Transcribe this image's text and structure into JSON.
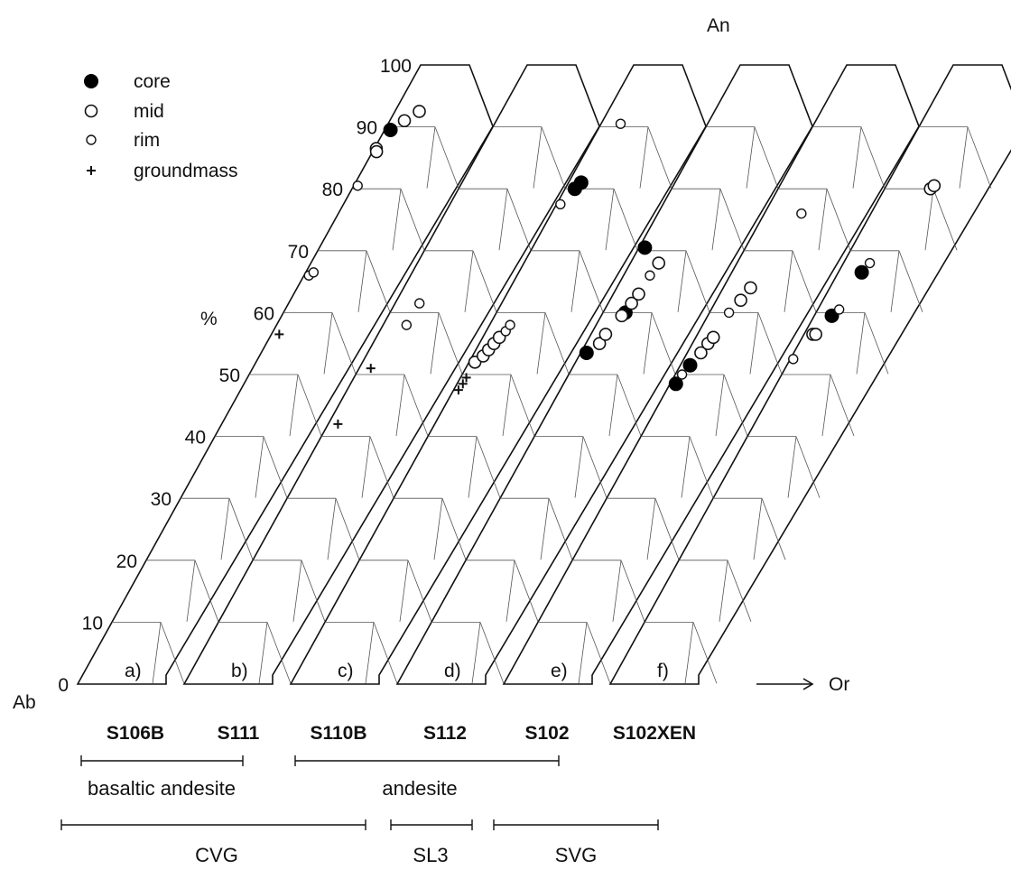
{
  "chart_data": {
    "type": "scatter",
    "title": "",
    "ylabel": "%",
    "apex_top": "An",
    "corner_left": "Ab",
    "corner_right": "Or",
    "axis_ticks": [
      "0",
      "10",
      "20",
      "30",
      "40",
      "50",
      "60",
      "70",
      "80",
      "90",
      "100"
    ],
    "ylim": [
      0,
      100
    ],
    "grid": true,
    "legend_position": "top-left",
    "legend": [
      {
        "key": "core",
        "label": "core",
        "symbol": "filled-circle"
      },
      {
        "key": "mid",
        "label": "mid",
        "symbol": "open-circle"
      },
      {
        "key": "rim",
        "label": "rim",
        "symbol": "small-open-circle"
      },
      {
        "key": "groundmass",
        "label": "groundmass",
        "symbol": "plus"
      }
    ],
    "panels": [
      {
        "label": "a)",
        "sample": "S106B",
        "points": [
          {
            "An": 89.5,
            "Or": 0.6,
            "type": "core"
          },
          {
            "An": 91.0,
            "Or": 1.5,
            "type": "mid"
          },
          {
            "An": 92.5,
            "Or": 2.5,
            "type": "mid"
          },
          {
            "An": 86.5,
            "Or": 0.2,
            "type": "mid"
          },
          {
            "An": 86.0,
            "Or": 0.4,
            "type": "mid"
          },
          {
            "An": 80.5,
            "Or": 0.4,
            "type": "rim"
          },
          {
            "An": 66.0,
            "Or": 0.5,
            "type": "rim"
          },
          {
            "An": 66.5,
            "Or": 0.8,
            "type": "rim"
          },
          {
            "An": 56.5,
            "Or": 0.8,
            "type": "groundmass"
          }
        ]
      },
      {
        "label": "b)",
        "sample": "S111",
        "points": [
          {
            "An": 51.0,
            "Or": 1.2,
            "type": "groundmass"
          },
          {
            "An": 42.0,
            "Or": 1.0,
            "type": "groundmass"
          },
          {
            "An": 58.0,
            "Or": 2.4,
            "type": "rim"
          },
          {
            "An": 61.5,
            "Or": 2.5,
            "type": "rim"
          }
        ]
      },
      {
        "label": "c)",
        "sample": "S110B",
        "points": [
          {
            "An": 80.0,
            "Or": 1.0,
            "type": "core"
          },
          {
            "An": 81.0,
            "Or": 1.3,
            "type": "core"
          },
          {
            "An": 77.5,
            "Or": 0.4,
            "type": "rim"
          },
          {
            "An": 90.5,
            "Or": 2.0,
            "type": "rim"
          },
          {
            "An": 52.0,
            "Or": 0.6,
            "type": "mid"
          },
          {
            "An": 53.0,
            "Or": 1.1,
            "type": "mid"
          },
          {
            "An": 54.0,
            "Or": 1.3,
            "type": "mid"
          },
          {
            "An": 55.0,
            "Or": 1.5,
            "type": "mid"
          },
          {
            "An": 56.0,
            "Or": 1.7,
            "type": "mid"
          },
          {
            "An": 57.0,
            "Or": 2.0,
            "type": "rim"
          },
          {
            "An": 58.0,
            "Or": 2.1,
            "type": "rim"
          },
          {
            "An": 48.5,
            "Or": 0.6,
            "type": "groundmass"
          },
          {
            "An": 49.5,
            "Or": 0.6,
            "type": "groundmass"
          },
          {
            "An": 47.5,
            "Or": 0.5,
            "type": "groundmass"
          }
        ]
      },
      {
        "label": "d)",
        "sample": "S112",
        "points": [
          {
            "An": 70.5,
            "Or": 0.6,
            "type": "core"
          },
          {
            "An": 53.5,
            "Or": 0.6,
            "type": "core"
          },
          {
            "An": 60.0,
            "Or": 2.3,
            "type": "core"
          },
          {
            "An": 55.0,
            "Or": 1.4,
            "type": "mid"
          },
          {
            "An": 56.5,
            "Or": 1.5,
            "type": "mid"
          },
          {
            "An": 59.5,
            "Or": 2.1,
            "type": "mid"
          },
          {
            "An": 61.5,
            "Or": 2.4,
            "type": "mid"
          },
          {
            "An": 63.0,
            "Or": 2.6,
            "type": "mid"
          },
          {
            "An": 68.0,
            "Or": 2.9,
            "type": "mid"
          },
          {
            "An": 66.0,
            "Or": 2.7,
            "type": "rim"
          }
        ]
      },
      {
        "label": "e)",
        "sample": "S102",
        "points": [
          {
            "An": 48.5,
            "Or": 0.6,
            "type": "core"
          },
          {
            "An": 51.5,
            "Or": 1.0,
            "type": "core"
          },
          {
            "An": 53.5,
            "Or": 1.4,
            "type": "mid"
          },
          {
            "An": 55.0,
            "Or": 1.6,
            "type": "mid"
          },
          {
            "An": 56.0,
            "Or": 1.8,
            "type": "mid"
          },
          {
            "An": 60.0,
            "Or": 2.0,
            "type": "rim"
          },
          {
            "An": 62.0,
            "Or": 2.5,
            "type": "mid"
          },
          {
            "An": 64.0,
            "Or": 2.8,
            "type": "mid"
          },
          {
            "An": 50.0,
            "Or": 0.7,
            "type": "rim"
          },
          {
            "An": 76.0,
            "Or": 3.8,
            "type": "rim"
          }
        ]
      },
      {
        "label": "f)",
        "sample": "S102XEN",
        "points": [
          {
            "An": 66.5,
            "Or": 2.4,
            "type": "core"
          },
          {
            "An": 59.5,
            "Or": 1.8,
            "type": "core"
          },
          {
            "An": 56.5,
            "Or": 0.9,
            "type": "mid"
          },
          {
            "An": 56.5,
            "Or": 1.2,
            "type": "mid"
          },
          {
            "An": 60.5,
            "Or": 2.2,
            "type": "rim"
          },
          {
            "An": 68.0,
            "Or": 2.7,
            "type": "rim"
          },
          {
            "An": 52.5,
            "Or": 0.3,
            "type": "rim"
          },
          {
            "An": 80.0,
            "Or": 4.7,
            "type": "mid"
          },
          {
            "An": 80.5,
            "Or": 4.9,
            "type": "mid"
          }
        ]
      }
    ],
    "rock_types": [
      {
        "label": "basaltic andesite",
        "samples": [
          "S106B",
          "S111"
        ]
      },
      {
        "label": "andesite",
        "samples": [
          "S110B",
          "S112",
          "S102"
        ]
      }
    ],
    "groups": [
      {
        "label": "CVG"
      },
      {
        "label": "SL3"
      },
      {
        "label": "SVG"
      }
    ]
  }
}
